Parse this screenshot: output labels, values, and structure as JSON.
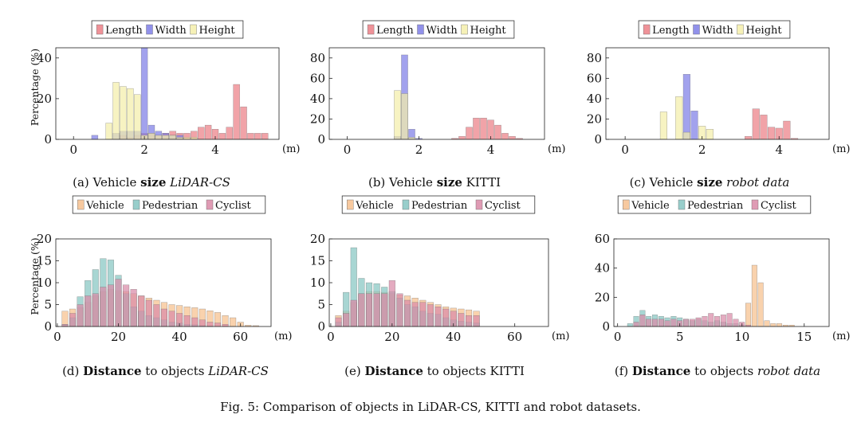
{
  "figure_caption": "Fig. 5: Comparison of objects in LiDAR-CS, KITTI and robot datasets.",
  "colors": {
    "Length": "#ec7f86",
    "Width": "#7e7ee6",
    "Height": "#f4efaa",
    "Vehicle": "#f6c08e",
    "Pedestrian": "#86c6c2",
    "Cyclist": "#d98aa7"
  },
  "chart_data": [
    {
      "id": "a",
      "type": "bar",
      "caption": {
        "prefix": "(a) Vehicle ",
        "bold": "size",
        "suffix": " ",
        "italic": "LiDAR-CS"
      },
      "legend": [
        "Length",
        "Width",
        "Height"
      ],
      "xlabel": "(m)",
      "ylabel": "Percentage (%)",
      "xlim": [
        -0.5,
        5.8
      ],
      "ylim": [
        0,
        45
      ],
      "bar_width": 0.18,
      "xticks": [
        0,
        2,
        4
      ],
      "yticks": [
        0,
        20,
        40
      ],
      "series": [
        {
          "name": "Length",
          "x": [
            1.4,
            1.6,
            1.8,
            2.0,
            2.2,
            2.4,
            2.6,
            2.8,
            3.0,
            3.2,
            3.4,
            3.6,
            3.8,
            4.0,
            4.2,
            4.4,
            4.6,
            4.8,
            5.0,
            5.2,
            5.4
          ],
          "values": [
            2,
            1,
            2,
            3,
            3,
            2,
            3,
            4,
            3,
            3,
            4,
            6,
            7,
            5,
            3,
            6,
            27,
            16,
            3,
            3,
            3
          ]
        },
        {
          "name": "Width",
          "x": [
            0.6,
            1.2,
            1.4,
            1.6,
            1.8,
            2.0,
            2.2,
            2.4,
            2.6,
            2.8,
            3.0
          ],
          "values": [
            2,
            3,
            4,
            4,
            4,
            45,
            7,
            4,
            3,
            2,
            2
          ]
        },
        {
          "name": "Height",
          "x": [
            1.0,
            1.2,
            1.4,
            1.6,
            1.8,
            2.0,
            2.2,
            2.4,
            2.6,
            2.8,
            3.0,
            3.2,
            3.4
          ],
          "values": [
            8,
            28,
            26,
            25,
            22,
            2,
            3,
            2,
            2,
            2,
            1,
            1,
            1
          ]
        }
      ]
    },
    {
      "id": "b",
      "type": "bar",
      "caption": {
        "prefix": "(b) Vehicle ",
        "bold": "size",
        "suffix": " KITTI",
        "italic": ""
      },
      "legend": [
        "Length",
        "Width",
        "Height"
      ],
      "xlabel": "(m)",
      "ylabel": "",
      "xlim": [
        -0.5,
        5.5
      ],
      "ylim": [
        0,
        90
      ],
      "bar_width": 0.18,
      "xticks": [
        0,
        2,
        4
      ],
      "yticks": [
        0,
        20,
        40,
        60,
        80
      ],
      "series": [
        {
          "name": "Length",
          "x": [
            3.0,
            3.2,
            3.4,
            3.6,
            3.8,
            4.0,
            4.2,
            4.4,
            4.6,
            4.8
          ],
          "values": [
            1,
            3,
            12,
            21,
            21,
            19,
            14,
            6,
            3,
            1
          ]
        },
        {
          "name": "Width",
          "x": [
            1.4,
            1.6,
            1.8,
            2.0
          ],
          "values": [
            3,
            83,
            10,
            1
          ]
        },
        {
          "name": "Height",
          "x": [
            1.4,
            1.6,
            1.8
          ],
          "values": [
            48,
            45,
            2
          ]
        }
      ]
    },
    {
      "id": "c",
      "type": "bar",
      "caption": {
        "prefix": "(c) Vehicle ",
        "bold": "size",
        "suffix": " ",
        "italic": "robot data"
      },
      "legend": [
        "Length",
        "Width",
        "Height"
      ],
      "xlabel": "(m)",
      "ylabel": "",
      "xlim": [
        -0.5,
        5.3
      ],
      "ylim": [
        0,
        90
      ],
      "bar_width": 0.18,
      "xticks": [
        0,
        2,
        4
      ],
      "yticks": [
        0,
        20,
        40,
        60,
        80
      ],
      "series": [
        {
          "name": "Length",
          "x": [
            3.2,
            3.4,
            3.6,
            3.8,
            4.0,
            4.2,
            4.4
          ],
          "values": [
            3,
            30,
            24,
            12,
            11,
            18,
            1
          ]
        },
        {
          "name": "Width",
          "x": [
            1.6,
            1.8
          ],
          "values": [
            64,
            28
          ]
        },
        {
          "name": "Height",
          "x": [
            1.0,
            1.4,
            1.6,
            2.0,
            2.2
          ],
          "values": [
            27,
            42,
            7,
            13,
            10
          ]
        }
      ]
    },
    {
      "id": "d",
      "type": "bar",
      "caption": {
        "prefix": "(d) ",
        "bold": "Distance",
        "suffix": " to objects ",
        "italic": "LiDAR-CS"
      },
      "legend": [
        "Vehicle",
        "Pedestrian",
        "Cyclist"
      ],
      "xlabel": "(m)",
      "ylabel": "Percentage (%)",
      "xlim": [
        -0.5,
        70
      ],
      "ylim": [
        0,
        20
      ],
      "bar_width": 2.0,
      "xticks": [
        0,
        20,
        40,
        60
      ],
      "yticks": [
        0,
        5,
        10,
        15,
        20
      ],
      "series": [
        {
          "name": "Vehicle",
          "x": [
            2.5,
            5,
            7.5,
            10,
            12.5,
            15,
            17.5,
            20,
            22.5,
            25,
            27.5,
            30,
            32.5,
            35,
            37.5,
            40,
            42.5,
            45,
            47.5,
            50,
            52.5,
            55,
            57.5,
            60,
            62.5,
            65
          ],
          "values": [
            3.5,
            4,
            4.3,
            5.5,
            7,
            8,
            8.5,
            8.2,
            8,
            7.5,
            7,
            6.5,
            6,
            5.5,
            5,
            4.8,
            4.5,
            4.3,
            4,
            3.6,
            3.2,
            2.5,
            2,
            1,
            0.3,
            0.2
          ]
        },
        {
          "name": "Pedestrian",
          "x": [
            2.5,
            5,
            7.5,
            10,
            12.5,
            15,
            17.5,
            20,
            22.5,
            25,
            27.5,
            30,
            32.5,
            35,
            37.5,
            40,
            42.5,
            45,
            47.5,
            50
          ],
          "values": [
            0.5,
            2,
            6.8,
            10.5,
            13,
            15.5,
            15.2,
            11.7,
            7.5,
            4.5,
            3.5,
            2.5,
            2,
            1.5,
            1,
            0.8,
            0.5,
            0.4,
            0.2,
            0.1
          ]
        },
        {
          "name": "Cyclist",
          "x": [
            2.5,
            5,
            7.5,
            10,
            12.5,
            15,
            17.5,
            20,
            22.5,
            25,
            27.5,
            30,
            32.5,
            35,
            37.5,
            40,
            42.5,
            45,
            47.5,
            50,
            52.5,
            55
          ],
          "values": [
            0.5,
            3,
            5,
            7,
            7.5,
            9,
            9.5,
            10.8,
            9.5,
            8.5,
            7,
            6,
            5,
            4,
            3.5,
            3,
            2.5,
            2,
            1.5,
            1,
            0.8,
            0.5
          ]
        }
      ]
    },
    {
      "id": "e",
      "type": "bar",
      "caption": {
        "prefix": "(e) ",
        "bold": "Distance",
        "suffix": " to objects KITTI",
        "italic": ""
      },
      "legend": [
        "Vehicle",
        "Pedestrian",
        "Cyclist"
      ],
      "xlabel": "(m)",
      "ylabel": "",
      "xlim": [
        -0.5,
        71
      ],
      "ylim": [
        0,
        20
      ],
      "bar_width": 2.0,
      "xticks": [
        0,
        20,
        40,
        60
      ],
      "yticks": [
        0,
        5,
        10,
        15,
        20
      ],
      "series": [
        {
          "name": "Vehicle",
          "x": [
            2.5,
            5,
            7.5,
            10,
            12.5,
            15,
            17.5,
            20,
            22.5,
            25,
            27.5,
            30,
            32.5,
            35,
            37.5,
            40,
            42.5,
            45,
            47.5
          ],
          "values": [
            2.5,
            3.5,
            5.5,
            7.5,
            8,
            8,
            7.8,
            7.5,
            7.2,
            7,
            6.5,
            6,
            5.5,
            5,
            4.5,
            4.2,
            4,
            3.8,
            3.5
          ]
        },
        {
          "name": "Pedestrian",
          "x": [
            2.5,
            5,
            7.5,
            10,
            12.5,
            15,
            17.5,
            20,
            22.5,
            25,
            27.5,
            30,
            32.5,
            35,
            37.5,
            40,
            42.5,
            45,
            47.5
          ],
          "values": [
            1,
            7.8,
            18,
            11,
            10,
            9.8,
            9,
            8,
            6.5,
            5,
            4.5,
            3.5,
            3,
            2.8,
            2,
            1.5,
            1.2,
            1,
            0.8
          ]
        },
        {
          "name": "Cyclist",
          "x": [
            2.5,
            5,
            7.5,
            10,
            12.5,
            15,
            17.5,
            20,
            22.5,
            25,
            27.5,
            30,
            32.5,
            35,
            37.5,
            40,
            42.5,
            45,
            47.5
          ],
          "values": [
            2,
            3,
            6,
            7.5,
            7.5,
            7.5,
            7.5,
            10.5,
            7.5,
            6,
            5.5,
            5.5,
            5,
            4.5,
            4,
            3.5,
            3,
            2.5,
            2.5
          ]
        }
      ]
    },
    {
      "id": "f",
      "type": "bar",
      "caption": {
        "prefix": "(f) ",
        "bold": "Distance",
        "suffix": " to objects ",
        "italic": "robot data"
      },
      "legend": [
        "Vehicle",
        "Pedestrian",
        "Cyclist"
      ],
      "xlabel": "(m)",
      "ylabel": "",
      "xlim": [
        -0.3,
        17
      ],
      "ylim": [
        0,
        60
      ],
      "bar_width": 0.42,
      "xticks": [
        0,
        5,
        10,
        15
      ],
      "yticks": [
        0,
        20,
        40,
        60
      ],
      "series": [
        {
          "name": "Vehicle",
          "x": [
            10.5,
            11,
            11.5,
            12,
            12.5,
            13,
            13.5,
            14
          ],
          "values": [
            16,
            42,
            30,
            4,
            2,
            2,
            1,
            1
          ]
        },
        {
          "name": "Pedestrian",
          "x": [
            1,
            1.5,
            2,
            2.5,
            3,
            3.5,
            4,
            4.5,
            5,
            5.5,
            6,
            6.5,
            7,
            7.5,
            8,
            8.5,
            9,
            9.5,
            10
          ],
          "values": [
            2,
            7,
            11,
            7,
            8,
            7,
            6,
            7,
            6,
            5,
            4,
            5,
            4,
            3,
            4,
            3,
            2,
            2,
            1
          ]
        },
        {
          "name": "Cyclist",
          "x": [
            1.5,
            2,
            2.5,
            3,
            3.5,
            4,
            4.5,
            5,
            5.5,
            6,
            6.5,
            7,
            7.5,
            8,
            8.5,
            9,
            9.5,
            10,
            10.5
          ],
          "values": [
            3,
            8,
            5,
            5,
            5,
            4,
            5,
            4,
            5,
            5,
            6,
            7,
            9,
            7,
            8,
            9,
            5,
            3,
            1
          ]
        }
      ]
    }
  ]
}
